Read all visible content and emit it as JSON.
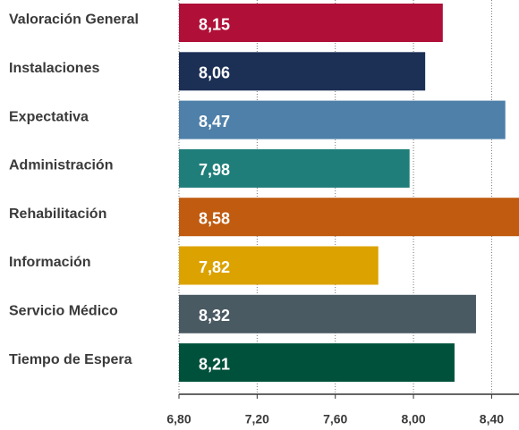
{
  "chart_data": {
    "type": "barh",
    "categories": [
      "Valoración General",
      "Instalaciones",
      "Expectativa",
      "Administración",
      "Rehabilitación",
      "Información",
      "Servicio Médico",
      "Tiempo de Espera"
    ],
    "values": [
      8.15,
      8.06,
      8.47,
      7.98,
      8.58,
      7.82,
      8.32,
      8.21
    ],
    "value_labels": [
      "8,15",
      "8,06",
      "8,47",
      "7,98",
      "8,58",
      "7,82",
      "8,32",
      "8,21"
    ],
    "colors": [
      "#b01038",
      "#1c2f55",
      "#4e80a9",
      "#1f7e7a",
      "#c05b10",
      "#dca200",
      "#4a5a63",
      "#00513b"
    ],
    "xlim": [
      6.8,
      8.54
    ],
    "xticks": [
      {
        "value": 6.8,
        "label": "6,80"
      },
      {
        "value": 7.2,
        "label": "7,20"
      },
      {
        "value": 7.6,
        "label": "7,60"
      },
      {
        "value": 8.0,
        "label": "8,00"
      },
      {
        "value": 8.4,
        "label": "8,40"
      }
    ],
    "grid": true
  }
}
